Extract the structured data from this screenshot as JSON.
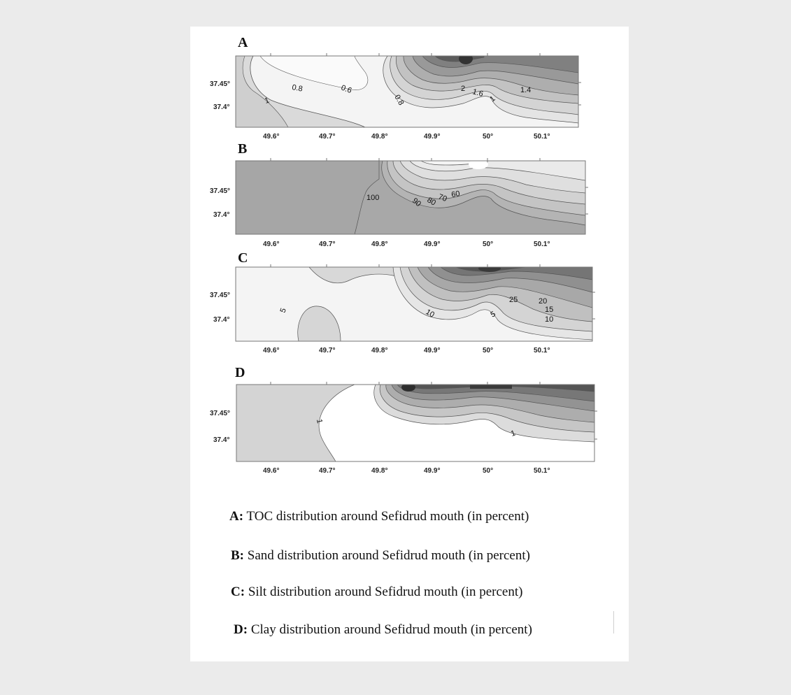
{
  "panels": [
    {
      "letter": "A",
      "y_ticks": [
        "37.45°",
        "37.4°"
      ],
      "x_ticks": [
        "49.6°",
        "49.7°",
        "49.8°",
        "49.9°",
        "50°",
        "50.1°"
      ],
      "contour_labels": [
        "0.8",
        "0.6",
        "1",
        "0.8",
        "2",
        "1.6",
        "1.4",
        "1"
      ]
    },
    {
      "letter": "B",
      "y_ticks": [
        "37.45°",
        "37.4°"
      ],
      "x_ticks": [
        "49.6°",
        "49.7°",
        "49.8°",
        "49.9°",
        "50°",
        "50.1°"
      ],
      "contour_labels": [
        "100",
        "90",
        "80",
        "70",
        "60"
      ]
    },
    {
      "letter": "C",
      "y_ticks": [
        "37.45°",
        "37.4°"
      ],
      "x_ticks": [
        "49.6°",
        "49.7°",
        "49.8°",
        "49.9°",
        "50°",
        "50.1°"
      ],
      "contour_labels": [
        "5",
        "10",
        "5",
        "25",
        "20",
        "15",
        "10"
      ]
    },
    {
      "letter": "D",
      "y_ticks": [
        "37.45°",
        "37.4°"
      ],
      "x_ticks": [
        "49.6°",
        "49.7°",
        "49.8°",
        "49.9°",
        "50°",
        "50.1°"
      ],
      "contour_labels": [
        "1",
        "1"
      ]
    }
  ],
  "captions": [
    {
      "key": "A:",
      "text": " TOC distribution around Sefidrud mouth (in percent)"
    },
    {
      "key": "B:",
      "text": " Sand distribution around Sefidrud mouth (in percent)"
    },
    {
      "key": "C:",
      "text": " Silt distribution around Sefidrud mouth (in percent)"
    },
    {
      "key": "D:",
      "text": " Clay distribution around Sefidrud mouth (in percent)"
    }
  ],
  "colors": {
    "light_fill": "#f3f3f3",
    "mid_fill": "#c8c8c8",
    "dark_fill": "#3a3a3a",
    "contour_line": "#555555"
  }
}
